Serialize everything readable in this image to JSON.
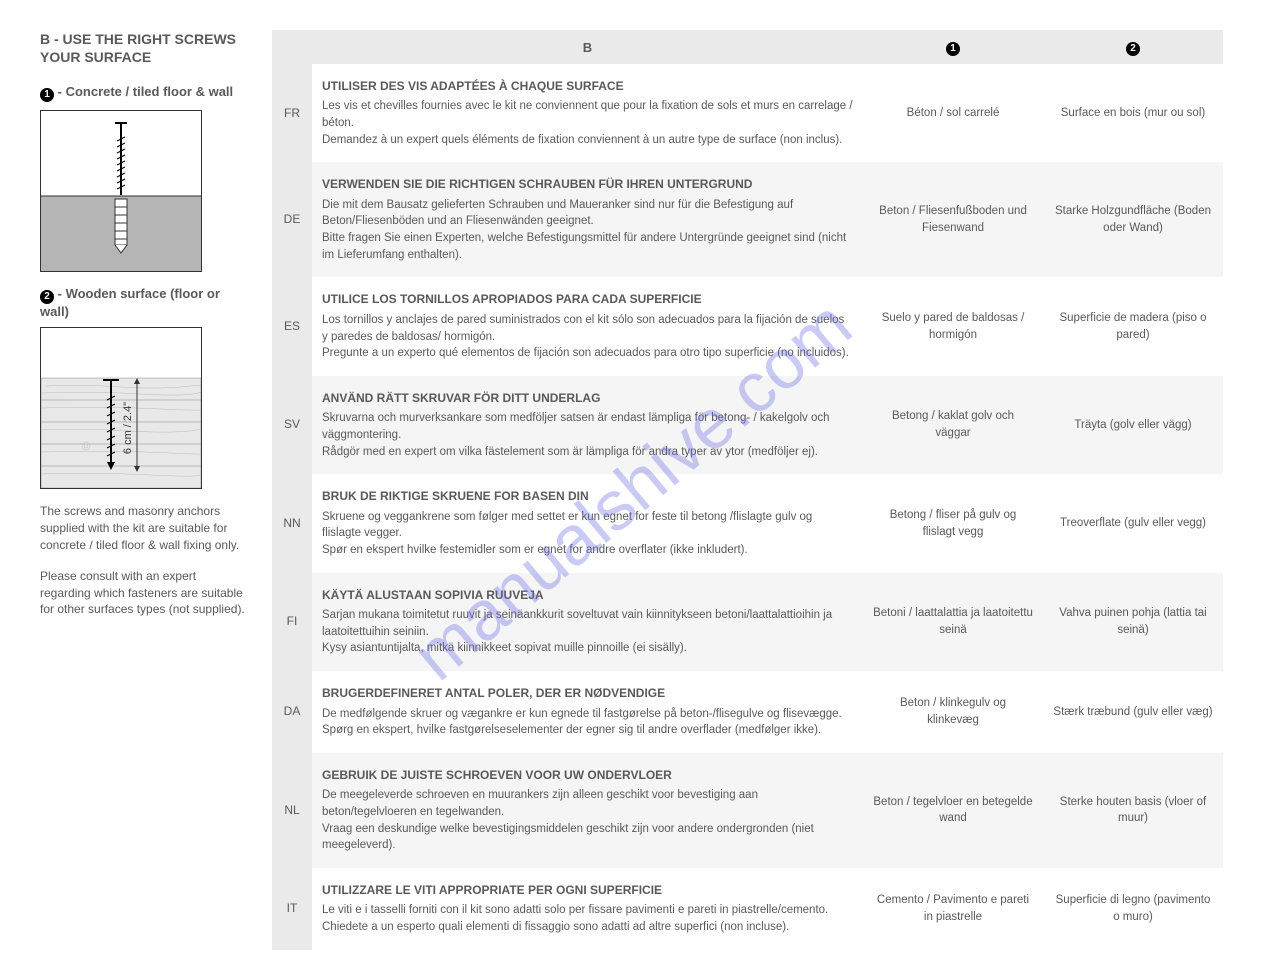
{
  "left": {
    "title": "B - USE THE RIGHT SCREWS YOUR SURFACE",
    "heading1_num": "1",
    "heading1_text": "- Concrete / tiled floor & wall",
    "heading2_num": "2",
    "heading2_text": "- Wooden surface (floor or wall)",
    "illus2_label": "6 cm / 2.4\"",
    "para1": "The screws and masonry anchors supplied with the kit are suitable for concrete / tiled floor & wall fixing only.",
    "para2": "Please consult with an expert regarding which fasteners are suitable for other surfaces types (not supplied)."
  },
  "table": {
    "head_b": "B",
    "head_1": "1",
    "head_2": "2",
    "rows": [
      {
        "lang": "FR",
        "title": "UTILISER DES VIS ADAPTÉES À CHAQUE SURFACE",
        "body": "Les vis et chevilles fournies avec le kit ne conviennent que pour la fixation de sols et murs en carrelage / béton.\nDemandez à un expert quels éléments de fixation conviennent à un autre type de surface (non inclus).",
        "c1": "Béton / sol carrelé",
        "c2": "Surface en bois (mur ou sol)"
      },
      {
        "lang": "DE",
        "title": "VERWENDEN SIE DIE RICHTIGEN SCHRAUBEN FÜR IHREN UNTERGRUND",
        "body": "Die mit dem Bausatz gelieferten Schrauben und Maueranker sind nur für die Befestigung auf Beton/Fliesenböden und an Fliesenwänden geeignet.\nBitte fragen Sie einen Experten, welche Befestigungsmittel für andere Untergründe geeignet sind (nicht im Lieferumfang enthalten).",
        "c1": "Beton / Fliesenfußboden und Fiesenwand",
        "c2": "Starke Holzgundfläche (Boden oder Wand)"
      },
      {
        "lang": "ES",
        "title": "UTILICE LOS TORNILLOS APROPIADOS PARA CADA SUPERFICIE",
        "body": "Los tornillos y anclajes de pared suministrados con el kit sólo son adecuados para la fijación de suelos y paredes de baldosas/ hormigón.\nPregunte a un experto qué elementos de fijación son adecuados para otro tipo superficie (no incluidos).",
        "c1": "Suelo y pared de baldosas / hormigón",
        "c2": "Superficie de madera (piso o pared)"
      },
      {
        "lang": "SV",
        "title": "ANVÄND RÄTT SKRUVAR FÖR DITT UNDERLAG",
        "body": "Skruvarna och murverksankare som medföljer satsen är endast lämpliga för betong- / kakelgolv och väggmontering.\nRådgör med en expert om vilka fästelement som är lämpliga för andra typer av ytor (medföljer ej).",
        "c1": "Betong / kaklat golv och väggar",
        "c2": "Träyta (golv eller vägg)"
      },
      {
        "lang": "NN",
        "title": "BRUK DE RIKTIGE SKRUENE FOR BASEN DIN",
        "body": "Skruene og veggankrene som følger med settet er kun egnet for feste til betong /flislagte gulv og flislagte vegger.\nSpør en ekspert hvilke festemidler som er egnet for andre overflater (ikke inkludert).",
        "c1": "Betong / fliser på gulv og flislagt vegg",
        "c2": "Treoverflate (gulv eller vegg)"
      },
      {
        "lang": "FI",
        "title": "KÄYTÄ ALUSTAAN SOPIVIA RUUVEJA",
        "body": "Sarjan mukana toimitetut ruuvit ja seinäankkurit soveltuvat vain kiinnitykseen betoni/laattalattioihin ja laatoitettuihin seiniin.\nKysy asiantuntijalta, mitkä kiinnikkeet sopivat muille pinnoille (ei sisälly).",
        "c1": "Betoni / laattalattia ja laatoitettu seinä",
        "c2": "Vahva puinen pohja (lattia tai seinä)"
      },
      {
        "lang": "DA",
        "title": "BRUGERDEFINERET ANTAL POLER, DER ER NØDVENDIGE",
        "body": "De medfølgende skruer og vægankre er kun egnede til fastgørelse på beton-/flisegulve og flisevægge.\nSpørg en ekspert, hvilke fastgørelseselementer der egner sig til andre overflader (medfølger ikke).",
        "c1": "Beton / klinkegulv og klinkevæg",
        "c2": "Stærk træbund (gulv eller væg)"
      },
      {
        "lang": "NL",
        "title": "GEBRUIK DE JUISTE SCHROEVEN VOOR UW ONDERVLOER",
        "body": "De meegeleverde schroeven en muurankers zijn alleen geschikt voor bevestiging aan beton/tegelvloeren en tegelwanden.\nVraag een deskundige welke bevestigingsmiddelen geschikt zijn voor andere ondergronden (niet meegeleverd).",
        "c1": "Beton / tegelvloer en betegelde wand",
        "c2": "Sterke houten basis (vloer of muur)"
      },
      {
        "lang": "IT",
        "title": "UTILIZZARE LE VITI APPROPRIATE PER OGNI SUPERFICIE",
        "body": "Le viti e i tasselli forniti con il kit sono adatti solo per fissare pavimenti e pareti in piastrelle/cemento.\nChiedete a un esperto quali elementi di fissaggio sono adatti ad altre superfici (non incluse).",
        "c1": "Cemento / Pavimento e pareti in piastrelle",
        "c2": "Superficie di legno (pavimento o muro)"
      }
    ]
  },
  "watermark": "manualshive.com"
}
